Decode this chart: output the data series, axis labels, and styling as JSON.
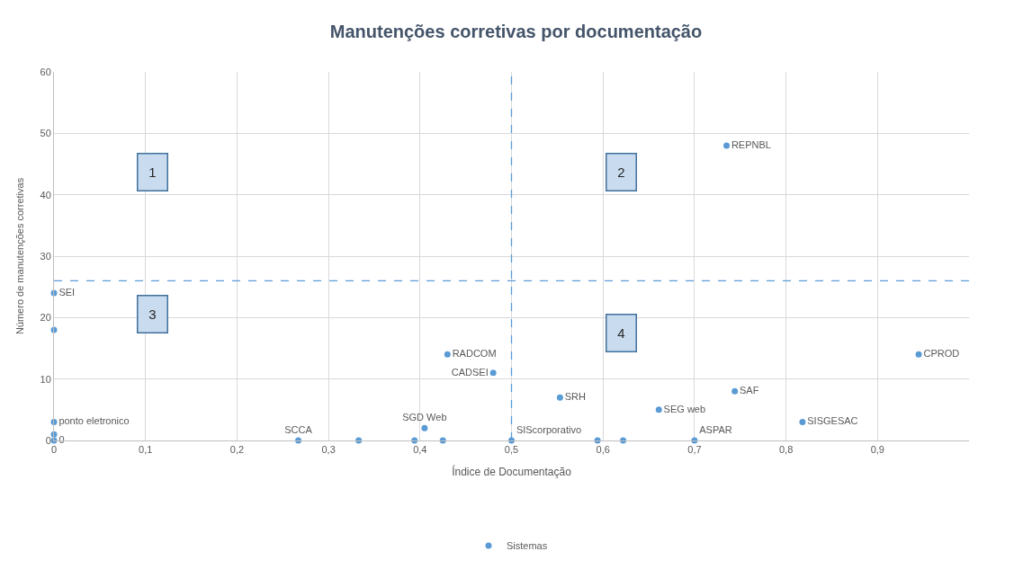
{
  "chart_data": {
    "type": "scatter",
    "title": "Manutenções corretivas por documentação",
    "xlabel": "Índice de Documentação",
    "ylabel": "Número de manutenções corretivas",
    "series": [
      {
        "name": "Sistemas",
        "color": "#5b9bd5",
        "x": [
          0,
          0,
          0,
          0,
          0,
          0.267,
          0.333,
          0.394,
          0.405,
          0.425,
          0.43,
          0.48,
          0.5,
          0.553,
          0.594,
          0.622,
          0.661,
          0.7,
          0.735,
          0.744,
          0.818,
          0.945
        ],
        "values": [
          24,
          18,
          3,
          1,
          0,
          0,
          0,
          0,
          2,
          0,
          14,
          11,
          0,
          7,
          0,
          0,
          5,
          0,
          48,
          8,
          3,
          14
        ],
        "value_labels": [
          "SEI",
          null,
          "ponto eletronico",
          null,
          "0",
          "SCCA",
          null,
          null,
          "SGD Web",
          null,
          "RADCOM",
          "CADSEI",
          "SIScorporativo",
          "SRH",
          null,
          null,
          "SEG web",
          "ASPAR",
          "REPNBL",
          "SAF",
          "SISGESAC",
          "CPROD"
        ]
      }
    ],
    "xlim": [
      0,
      1
    ],
    "xticks": [
      0,
      {
        "value": 0.1,
        "label": "0,1"
      },
      {
        "value": 0.2,
        "label": "0,2"
      },
      {
        "value": 0.3,
        "label": "0,3"
      },
      {
        "value": 0.4,
        "label": "0,4"
      },
      {
        "value": 0.5,
        "label": "0,5"
      },
      {
        "value": 0.6,
        "label": "0,6"
      },
      {
        "value": 0.7,
        "label": "0,7"
      },
      {
        "value": 0.8,
        "label": "0,8"
      },
      {
        "value": 0.9,
        "label": "0,9"
      }
    ],
    "ylim": [
      0,
      60
    ],
    "yticks": [
      0,
      10,
      20,
      30,
      40,
      50,
      60
    ],
    "ref_lines": [
      {
        "axis": "x",
        "value": 0.5,
        "color": "#5b9bd5",
        "line_style": "dashed"
      },
      {
        "axis": "y",
        "value": 26,
        "color": "#5b9bd5",
        "line_style": "dashed"
      }
    ],
    "annotations": [
      "1",
      "2",
      "3",
      "4"
    ],
    "grid": true,
    "legend": "bottom",
    "marker": "circle"
  }
}
